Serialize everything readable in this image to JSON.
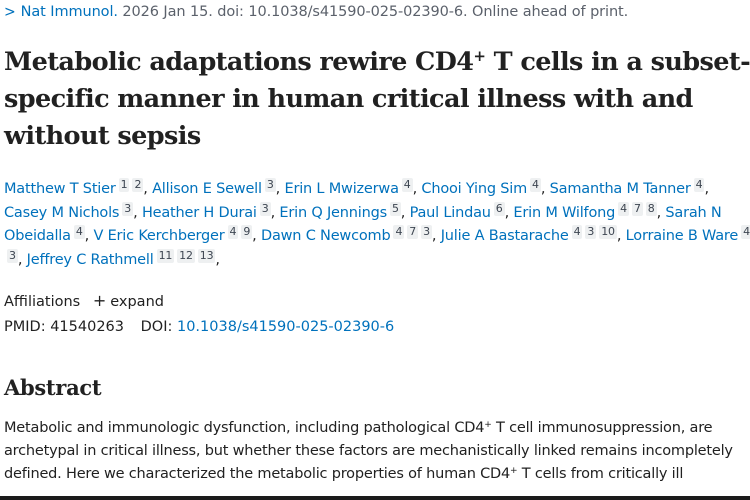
{
  "citation": {
    "chevron_icon": ">",
    "journal": "Nat Immunol.",
    "details": " 2026 Jan 15. doi: 10.1038/s41590-025-02390-6. Online ahead of print."
  },
  "title": {
    "part1": "Metabolic adaptations rewire CD4",
    "sup": "+",
    "part2": " T cells in a subset-specific manner in human critical illness with and without sepsis"
  },
  "authors": [
    {
      "name": "Matthew T Stier",
      "affiliations": [
        "1",
        "2"
      ]
    },
    {
      "name": "Allison E Sewell",
      "affiliations": [
        "3"
      ]
    },
    {
      "name": "Erin L Mwizerwa",
      "affiliations": [
        "4"
      ]
    },
    {
      "name": "Chooi Ying Sim",
      "affiliations": [
        "4"
      ]
    },
    {
      "name": "Samantha M Tanner",
      "affiliations": [
        "4"
      ]
    },
    {
      "name": "Casey M Nichols",
      "affiliations": [
        "3"
      ]
    },
    {
      "name": "Heather H Durai",
      "affiliations": [
        "3"
      ]
    },
    {
      "name": "Erin Q Jennings",
      "affiliations": [
        "5"
      ]
    },
    {
      "name": "Paul Lindau",
      "affiliations": [
        "6"
      ]
    },
    {
      "name": "Erin M Wilfong",
      "affiliations": [
        "4",
        "7",
        "8"
      ]
    },
    {
      "name": "Sarah N Obeidalla",
      "affiliations": [
        "4"
      ]
    },
    {
      "name": "V Eric Kerchberger",
      "affiliations": [
        "4",
        "9"
      ]
    },
    {
      "name": "Dawn C Newcomb",
      "affiliations": [
        "4",
        "7",
        "3"
      ]
    },
    {
      "name": "Julie A Bastarache",
      "affiliations": [
        "4",
        "3",
        "10"
      ]
    },
    {
      "name": "Lorraine B Ware",
      "affiliations": [
        "4",
        "3"
      ]
    },
    {
      "name": "Jeffrey C Rathmell",
      "affiliations": [
        "11",
        "12",
        "13"
      ]
    }
  ],
  "affiliations": {
    "label": "Affiliations",
    "expand_icon": "+",
    "expand_label": "expand"
  },
  "ids": {
    "pmid_label": "PMID:",
    "pmid": "41540263",
    "doi_label": "DOI:",
    "doi": "10.1038/s41590-025-02390-6"
  },
  "abstract": {
    "heading": "Abstract",
    "text_a": "Metabolic and immunologic dysfunction, including pathological CD4",
    "sup_a": "+",
    "text_b": " T cell immunosuppression, are archetypal in critical illness, but whether these factors are mechanistically linked remains incompletely defined. Here we characterized the metabolic properties of human CD4",
    "sup_b": "+",
    "text_c": " T cells from critically ill"
  }
}
